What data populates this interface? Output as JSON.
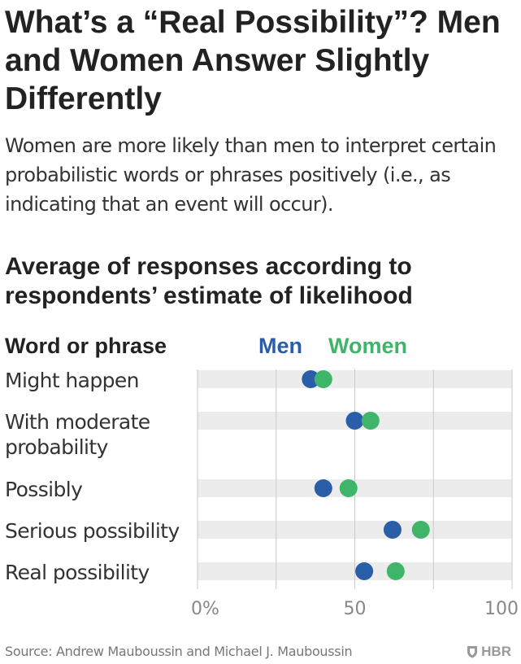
{
  "title": "What’s a “Real Possibility”? Men and Women Answer Slightly Differently",
  "subtitle": "Women are more likely than men to interpret certain probabilistic words or phrases positively (i.e., as indicating that an event will occur).",
  "chart_title": "Average of responses according to respondents’ estimate of likelihood",
  "footer": {
    "source": "Source: Andrew Mauboussin and Michael J. Mauboussin",
    "brand": "HBR",
    "brand_icon": "shield-icon"
  },
  "colors": {
    "men": "#2b5ea8",
    "women": "#3fb56a",
    "band": "#ececec",
    "grid": "#c8c8c8",
    "text": "#222222",
    "tick": "#888888"
  },
  "chart_data": {
    "type": "scatter",
    "category_header": "Word or phrase",
    "categories": [
      "Might happen",
      "With moderate probability",
      "Possibly",
      "Serious possibility",
      "Real possibility"
    ],
    "category_lines": [
      [
        "Might happen"
      ],
      [
        "With moderate",
        "probability"
      ],
      [
        "Possibly"
      ],
      [
        "Serious possibility"
      ],
      [
        "Real possibility"
      ]
    ],
    "series": [
      {
        "name": "Men",
        "values": [
          36,
          50,
          40,
          62,
          53
        ]
      },
      {
        "name": "Women",
        "values": [
          40,
          55,
          48,
          71,
          63
        ]
      }
    ],
    "xlim": [
      0,
      100
    ],
    "xticks": [
      0,
      50,
      100
    ],
    "xtick_labels": [
      "0%",
      "50",
      "100"
    ],
    "grid": true,
    "legend_position": "top"
  }
}
